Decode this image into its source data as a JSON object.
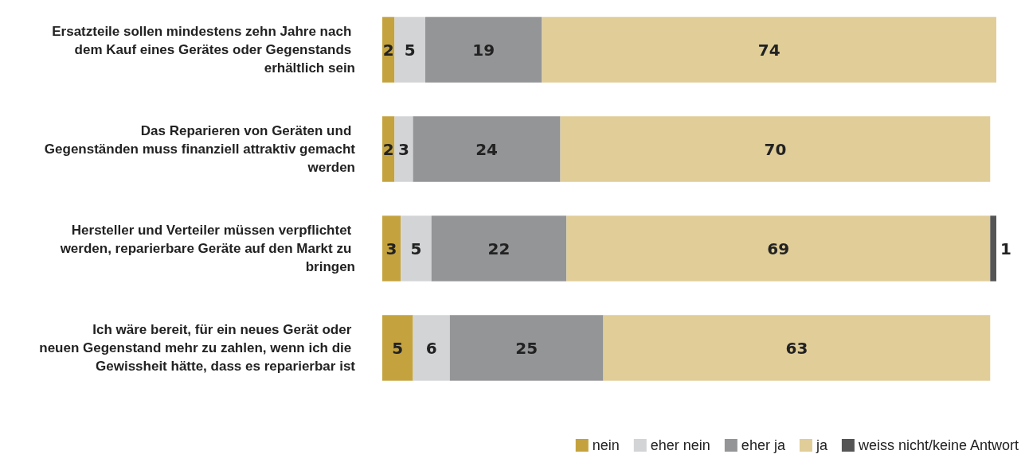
{
  "chart_data": {
    "type": "bar",
    "orientation": "horizontal",
    "stacked": true,
    "data_labels": true,
    "legend": "bottom right",
    "grid": false,
    "categories": [
      "Ersatzteile sollen mindestens zehn Jahre nach dem Kauf eines Gerätes oder Gegenstands erhältlich sein",
      "Das Reparieren von Geräten und Gegenständen muss finanziell attraktiv gemacht werden",
      "Hersteller und Verteiler müssen verpflichtet werden, reparierbare Geräte auf den Markt zu bringen",
      "Ich wäre bereit, für ein neues Gerät oder neuen Gegenstand mehr zu zahlen, wenn ich die Gewissheit hätte, dass es reparierbar ist"
    ],
    "series": [
      {
        "name": "nein",
        "color": "#c4a33f",
        "values": [
          2,
          2,
          3,
          5
        ]
      },
      {
        "name": "eher nein",
        "color": "#d3d4d6",
        "values": [
          5,
          3,
          5,
          6
        ]
      },
      {
        "name": "eher ja",
        "color": "#949597",
        "values": [
          19,
          24,
          22,
          25
        ]
      },
      {
        "name": "ja",
        "color": "#e0cd98",
        "values": [
          74,
          70,
          69,
          63
        ]
      },
      {
        "name": "weiss nicht/keine Antwort",
        "color": "#555555",
        "values": [
          null,
          null,
          1,
          null
        ]
      }
    ]
  }
}
